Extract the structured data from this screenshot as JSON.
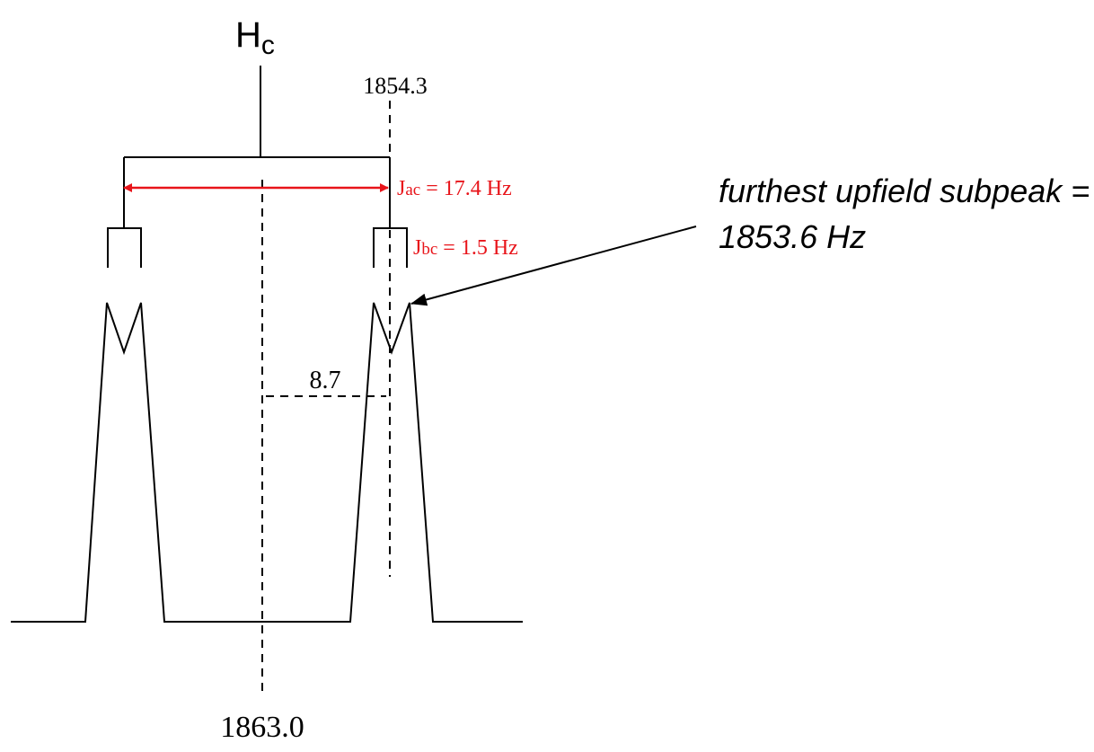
{
  "proton": {
    "letter": "H",
    "subscript": "c"
  },
  "labels": {
    "center": "1863.0",
    "line_position": "1854.3",
    "half_split": "8.7",
    "j_ac": {
      "prefix": "J",
      "sub": "ac",
      "suffix": " = 17.4 Hz"
    },
    "j_bc": {
      "prefix": "J",
      "sub": "bc",
      "suffix": " = 1.5 Hz"
    }
  },
  "annotation": {
    "line1": "furthest upfield subpeak =",
    "line2": "1853.6 Hz"
  },
  "colors": {
    "accent": "#e8141a",
    "ink": "#000000"
  }
}
